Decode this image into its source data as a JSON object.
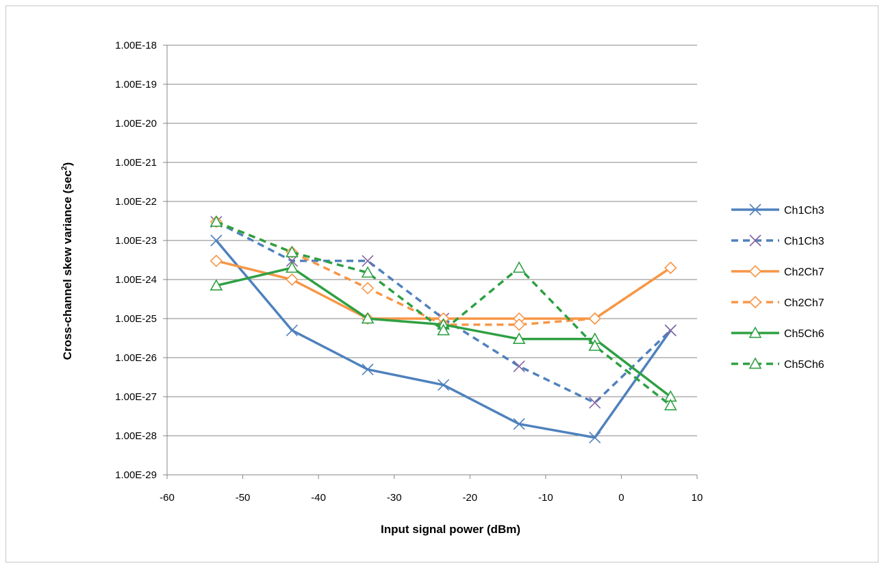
{
  "chart_data": {
    "type": "line",
    "title": "",
    "xlabel": "Input signal power (dBm)",
    "ylabel_main": "Cross-channel skew variance (sec",
    "ylabel_sup": "2",
    "ylabel_close": ")",
    "x_scale": "linear",
    "y_scale": "log",
    "xlim": [
      -60,
      10
    ],
    "ylim": [
      1e-29,
      1e-18
    ],
    "xticks": [
      -60,
      -50,
      -40,
      -30,
      -20,
      -10,
      0,
      10
    ],
    "xtick_labels": [
      "-60",
      "-50",
      "-40",
      "-30",
      "-20",
      "-10",
      "0",
      "10"
    ],
    "yticks": [
      1e-29,
      1e-28,
      1e-27,
      1e-26,
      1e-25,
      1e-24,
      1e-23,
      1e-22,
      1e-21,
      1e-20,
      1e-19,
      1e-18
    ],
    "ytick_labels": [
      "1.00E-29",
      "1.00E-28",
      "1.00E-27",
      "1.00E-26",
      "1.00E-25",
      "1.00E-24",
      "1.00E-23",
      "1.00E-22",
      "1.00E-21",
      "1.00E-20",
      "1.00E-19",
      "1.00E-18"
    ],
    "grid": "horizontal",
    "legend_position": "right",
    "x": [
      -53.5,
      -43.5,
      -33.5,
      -23.5,
      -13.5,
      -3.5,
      6.5
    ],
    "series": [
      {
        "name": "Ch1Ch3",
        "color": "#4f81bd",
        "dash": "solid",
        "marker": "x",
        "values": [
          1e-23,
          5e-26,
          5e-27,
          2e-27,
          2e-28,
          9e-29,
          5e-26
        ]
      },
      {
        "name": "Ch1Ch3",
        "color": "#4f81bd",
        "dash": "dashed",
        "marker": "x",
        "values": [
          3e-23,
          3e-24,
          3e-24,
          1e-25,
          6e-27,
          7e-28,
          5e-26
        ]
      },
      {
        "name": "Ch2Ch7",
        "color": "#f79646",
        "dash": "solid",
        "marker": "diamond",
        "values": [
          3e-24,
          1e-24,
          1e-25,
          1e-25,
          1e-25,
          1e-25,
          2e-24
        ]
      },
      {
        "name": "Ch2Ch7",
        "color": "#f79646",
        "dash": "dashed",
        "marker": "diamond",
        "values": [
          3e-23,
          5e-24,
          6e-25,
          7e-26,
          7e-26,
          1e-25,
          2e-24
        ]
      },
      {
        "name": "Ch5Ch6",
        "color": "#2ea043",
        "dash": "solid",
        "marker": "triangle",
        "values": [
          7e-25,
          2e-24,
          1e-25,
          7e-26,
          3e-26,
          3e-26,
          1e-27
        ]
      },
      {
        "name": "Ch5Ch6",
        "color": "#2ea043",
        "dash": "dashed",
        "marker": "triangle",
        "values": [
          3e-23,
          5e-24,
          1.5e-24,
          5e-26,
          2e-24,
          2e-26,
          6e-28
        ]
      }
    ]
  }
}
